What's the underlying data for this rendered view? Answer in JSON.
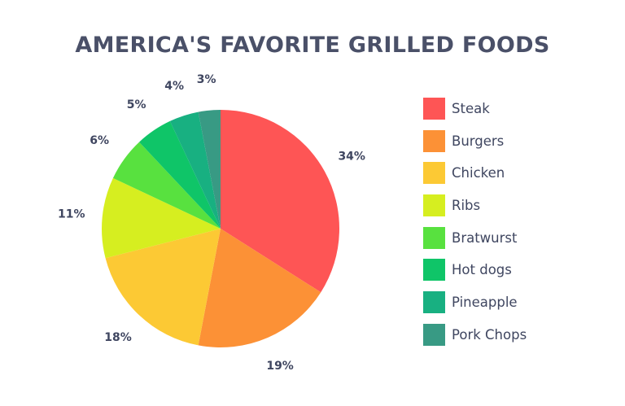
{
  "chart_data": {
    "type": "pie",
    "title": "AMERICA'S FAVORITE GRILLED FOODS",
    "slices": [
      {
        "name": "Steak",
        "value": 34,
        "label": "34%",
        "color": "#fe5555"
      },
      {
        "name": "Burgers",
        "value": 19,
        "label": "19%",
        "color": "#fc9136"
      },
      {
        "name": "Chicken",
        "value": 18,
        "label": "18%",
        "color": "#fcc934"
      },
      {
        "name": "Ribs",
        "value": 11,
        "label": "11%",
        "color": "#d6ee20"
      },
      {
        "name": "Bratwurst",
        "value": 6,
        "label": "6%",
        "color": "#58e13f"
      },
      {
        "name": "Hot dogs",
        "value": 5,
        "label": "5%",
        "color": "#0fc568"
      },
      {
        "name": "Pineapple",
        "value": 4,
        "label": "4%",
        "color": "#18b081"
      },
      {
        "name": "Pork Chops",
        "value": 3,
        "label": "3%",
        "color": "#389a84"
      }
    ],
    "legend_position": "right",
    "start_angle": "12 o'clock",
    "direction": "clockwise"
  }
}
